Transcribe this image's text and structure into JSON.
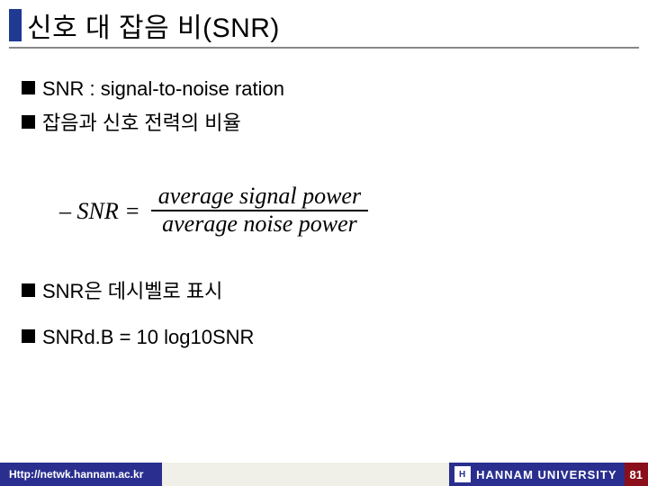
{
  "title": "신호 대 잡음 비(SNR)",
  "bullets": {
    "b1": "SNR : signal-to-noise ration",
    "b2": " 잡음과 신호 전력의 비율",
    "b3": " SNR은 데시벨로 표시",
    "b4": " SNRd.B = 10 log10SNR"
  },
  "formula": {
    "lhs": "– SNR =",
    "numerator": "average signal power",
    "denominator": "average noise power"
  },
  "footer": {
    "url": "Http://netwk.hannam.ac.kr",
    "org": "HANNAM  UNIVERSITY",
    "page": "81"
  },
  "colors": {
    "title_marker": "#1f3a93",
    "footer_blue": "#2a2f8f",
    "footer_mid": "#f0efe8",
    "page_red": "#8b0f1a",
    "underline": "#888888"
  }
}
